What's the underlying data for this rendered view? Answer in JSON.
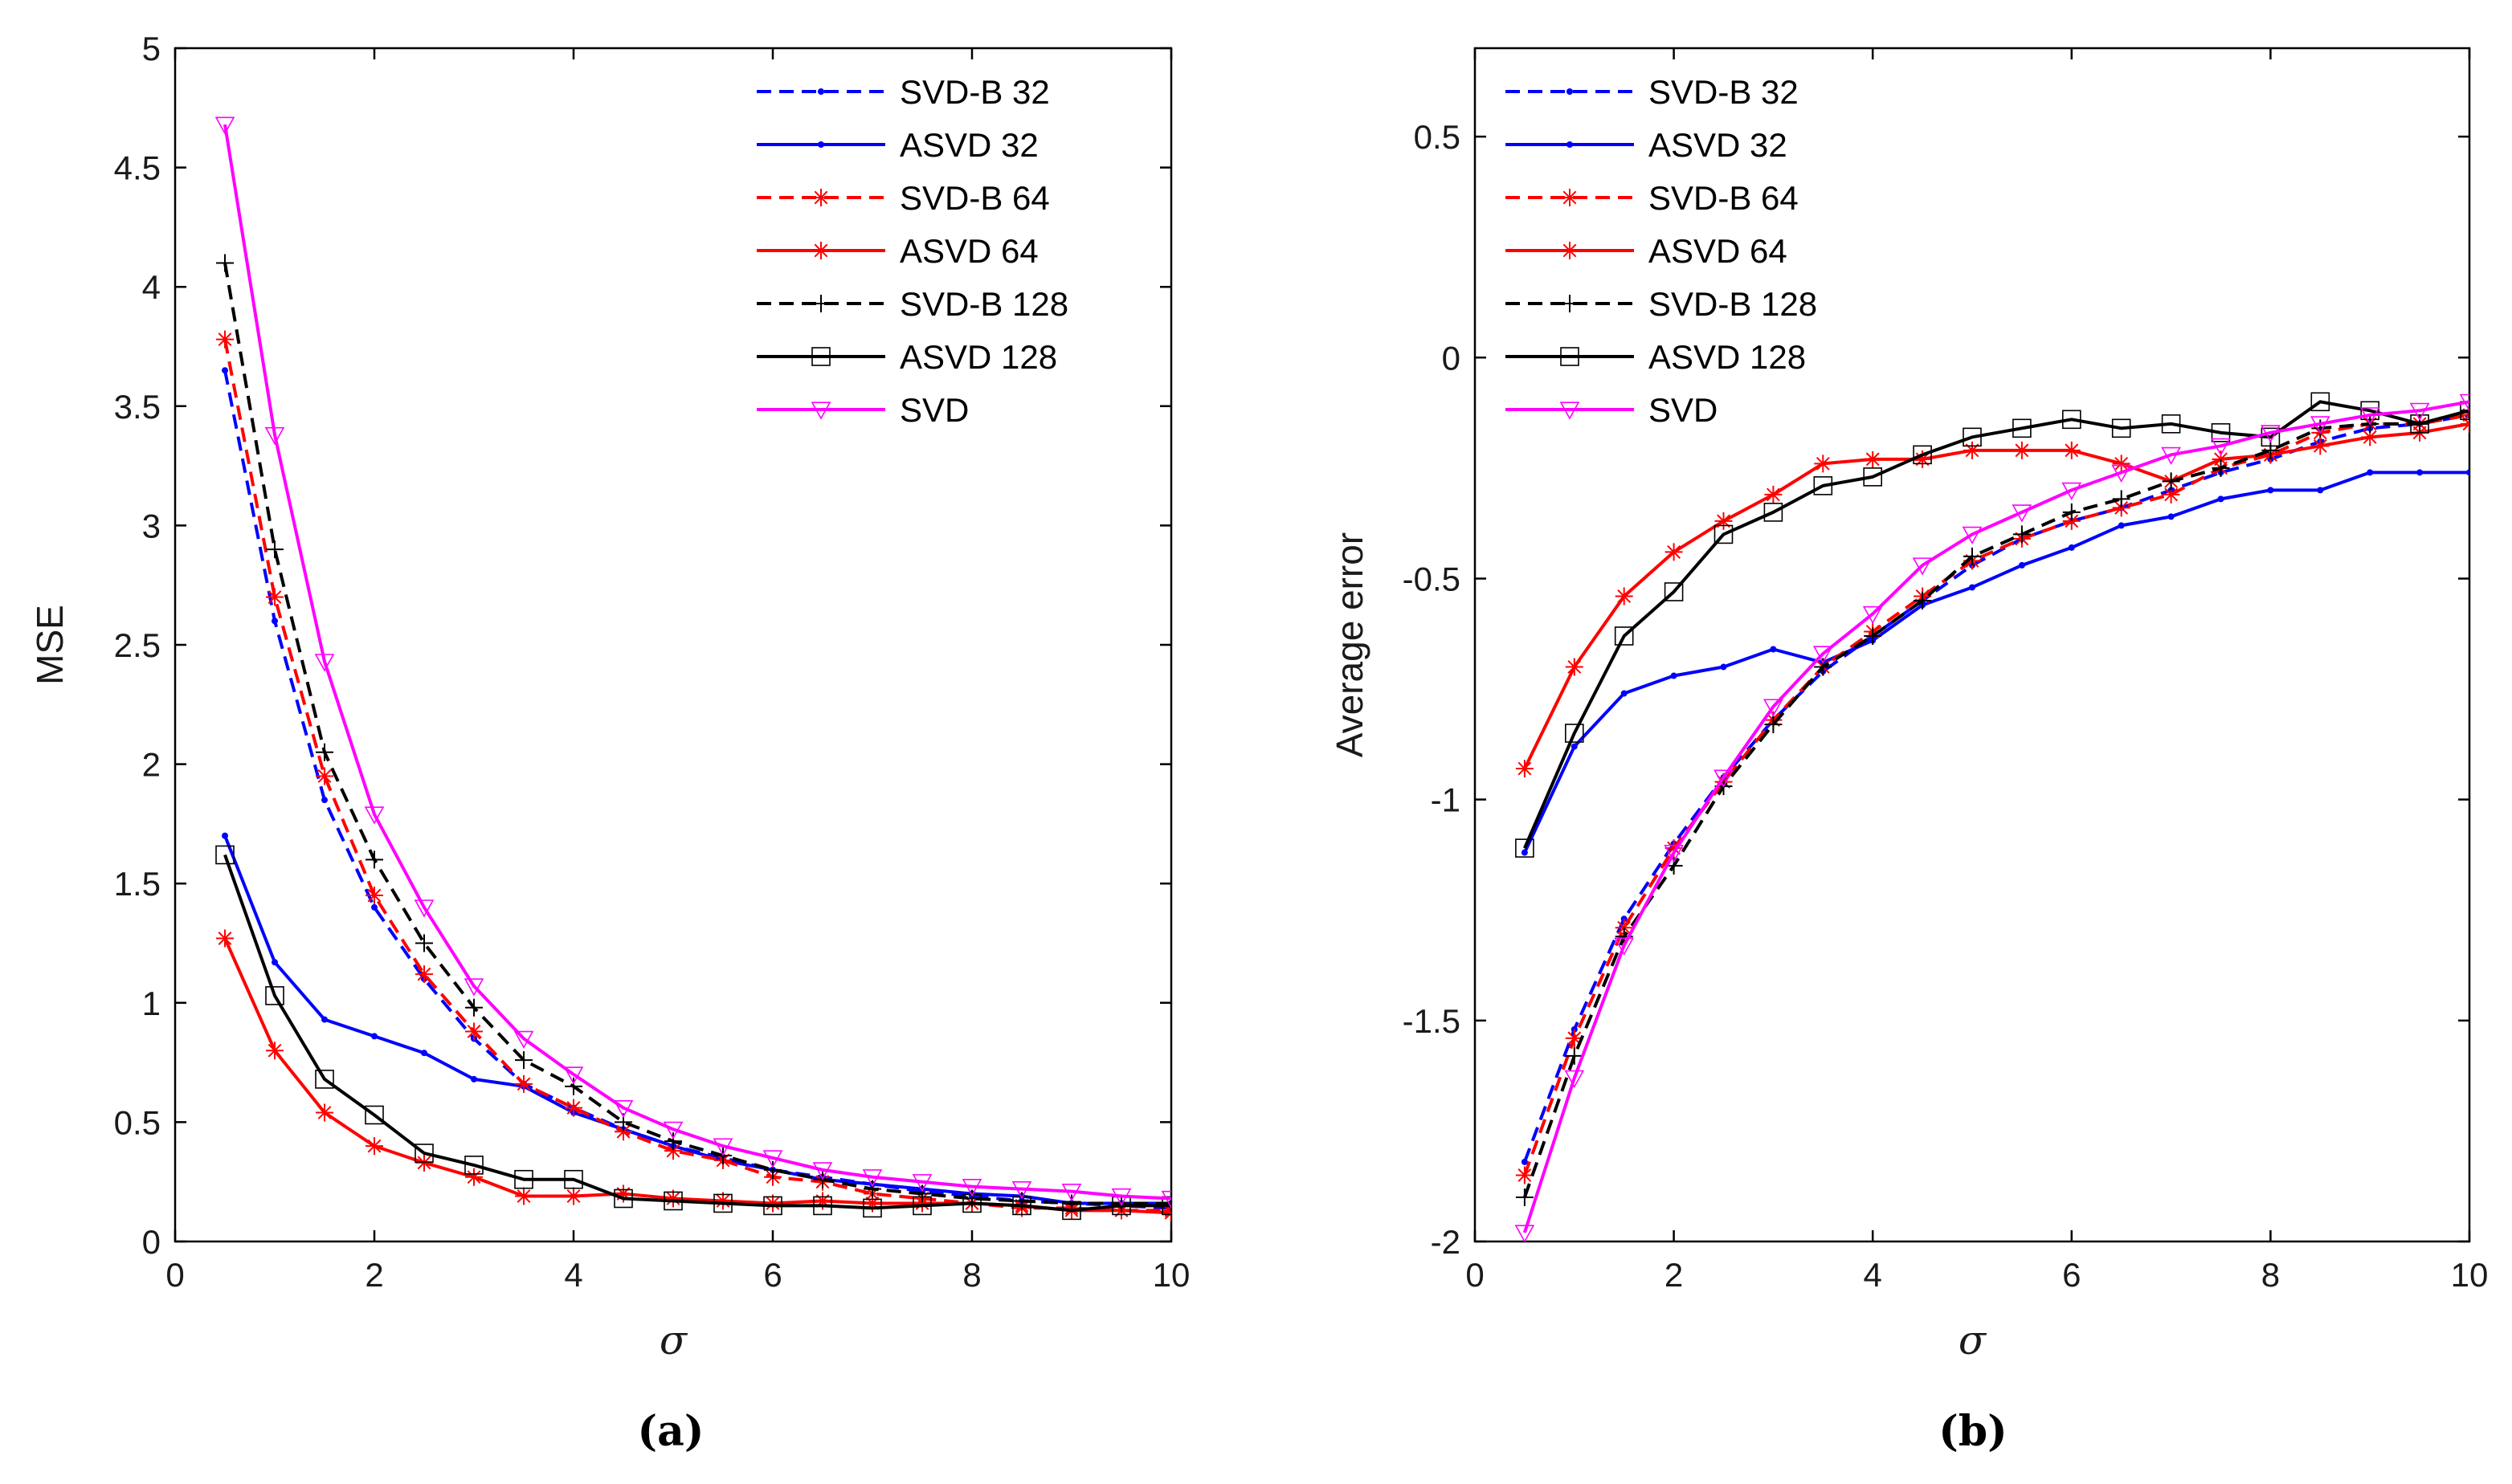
{
  "chart_data": [
    {
      "type": "line",
      "panel": "(a)",
      "xlabel": "σ",
      "ylabel": "MSE",
      "xlim": [
        0,
        10
      ],
      "ylim": [
        0,
        5
      ],
      "xticks": [
        "0",
        "2",
        "4",
        "6",
        "8",
        "10"
      ],
      "yticks": [
        "0",
        "0.5",
        "1",
        "1.5",
        "2",
        "2.5",
        "3",
        "3.5",
        "4",
        "4.5",
        "5"
      ],
      "legend_position": "top-right",
      "x": [
        0.5,
        1,
        1.5,
        2,
        2.5,
        3,
        3.5,
        4,
        4.5,
        5,
        5.5,
        6,
        6.5,
        7,
        7.5,
        8,
        8.5,
        9,
        9.5,
        10
      ],
      "series": [
        {
          "name": "SVD-B 32",
          "color": "#0000ff",
          "dash": "dashed",
          "marker": "dot",
          "values": [
            3.65,
            2.6,
            1.85,
            1.4,
            1.1,
            0.85,
            0.66,
            0.56,
            0.47,
            0.4,
            0.35,
            0.3,
            0.27,
            0.24,
            0.21,
            0.19,
            0.17,
            0.16,
            0.15,
            0.14
          ]
        },
        {
          "name": "ASVD 32",
          "color": "#0000ff",
          "dash": "solid",
          "marker": "dot",
          "values": [
            1.7,
            1.17,
            0.93,
            0.86,
            0.79,
            0.68,
            0.65,
            0.54,
            0.47,
            0.4,
            0.34,
            0.3,
            0.26,
            0.24,
            0.22,
            0.2,
            0.19,
            0.16,
            0.16,
            0.16
          ]
        },
        {
          "name": "SVD-B 64",
          "color": "#ff0000",
          "dash": "dashed",
          "marker": "star",
          "values": [
            3.78,
            2.7,
            1.95,
            1.45,
            1.12,
            0.88,
            0.66,
            0.56,
            0.46,
            0.38,
            0.34,
            0.27,
            0.25,
            0.2,
            0.18,
            0.16,
            0.14,
            0.14,
            0.13,
            0.13
          ]
        },
        {
          "name": "ASVD 64",
          "color": "#ff0000",
          "dash": "solid",
          "marker": "star",
          "values": [
            1.27,
            0.8,
            0.54,
            0.4,
            0.33,
            0.27,
            0.19,
            0.19,
            0.2,
            0.18,
            0.17,
            0.16,
            0.17,
            0.16,
            0.16,
            0.16,
            0.15,
            0.13,
            0.13,
            0.12
          ]
        },
        {
          "name": "SVD-B 128",
          "color": "#000000",
          "dash": "dashed",
          "marker": "plus",
          "values": [
            4.1,
            2.9,
            2.05,
            1.6,
            1.25,
            0.98,
            0.76,
            0.65,
            0.5,
            0.42,
            0.36,
            0.3,
            0.26,
            0.22,
            0.2,
            0.18,
            0.17,
            0.16,
            0.16,
            0.16
          ]
        },
        {
          "name": "ASVD 128",
          "color": "#000000",
          "dash": "solid",
          "marker": "square",
          "values": [
            1.62,
            1.03,
            0.68,
            0.53,
            0.37,
            0.32,
            0.26,
            0.26,
            0.18,
            0.17,
            0.16,
            0.15,
            0.15,
            0.14,
            0.15,
            0.16,
            0.15,
            0.13,
            0.15,
            0.15
          ]
        },
        {
          "name": "SVD",
          "color": "#ff00ff",
          "dash": "solid",
          "marker": "triangle-down",
          "values": [
            4.68,
            3.38,
            2.43,
            1.79,
            1.4,
            1.07,
            0.85,
            0.7,
            0.56,
            0.47,
            0.4,
            0.35,
            0.3,
            0.27,
            0.25,
            0.23,
            0.22,
            0.21,
            0.19,
            0.18
          ]
        }
      ]
    },
    {
      "type": "line",
      "panel": "(b)",
      "xlabel": "σ",
      "ylabel": "Average error",
      "xlim": [
        0,
        10
      ],
      "ylim": [
        -2,
        0.7
      ],
      "xticks": [
        "0",
        "2",
        "4",
        "6",
        "8",
        "10"
      ],
      "yticks": [
        "-2",
        "-1.5",
        "-1",
        "-0.5",
        "0",
        "0.5"
      ],
      "legend_position": "top-left",
      "x": [
        0.5,
        1,
        1.5,
        2,
        2.5,
        3,
        3.5,
        4,
        4.5,
        5,
        5.5,
        6,
        6.5,
        7,
        7.5,
        8,
        8.5,
        9,
        9.5,
        10
      ],
      "series": [
        {
          "name": "SVD-B 32",
          "color": "#0000ff",
          "dash": "dashed",
          "marker": "dot",
          "values": [
            -1.82,
            -1.52,
            -1.27,
            -1.1,
            -0.95,
            -0.82,
            -0.71,
            -0.63,
            -0.55,
            -0.47,
            -0.41,
            -0.37,
            -0.34,
            -0.3,
            -0.26,
            -0.23,
            -0.19,
            -0.16,
            -0.15,
            -0.13
          ]
        },
        {
          "name": "ASVD 32",
          "color": "#0000ff",
          "dash": "solid",
          "marker": "dot",
          "values": [
            -1.12,
            -0.88,
            -0.76,
            -0.72,
            -0.7,
            -0.66,
            -0.69,
            -0.64,
            -0.56,
            -0.52,
            -0.47,
            -0.43,
            -0.38,
            -0.36,
            -0.32,
            -0.3,
            -0.3,
            -0.26,
            -0.26,
            -0.26
          ]
        },
        {
          "name": "SVD-B 64",
          "color": "#ff0000",
          "dash": "dashed",
          "marker": "star",
          "values": [
            -1.85,
            -1.54,
            -1.29,
            -1.11,
            -0.96,
            -0.82,
            -0.7,
            -0.62,
            -0.54,
            -0.46,
            -0.41,
            -0.37,
            -0.34,
            -0.31,
            -0.25,
            -0.22,
            -0.17,
            -0.15,
            -0.15,
            -0.13
          ]
        },
        {
          "name": "ASVD 64",
          "color": "#ff0000",
          "dash": "solid",
          "marker": "star",
          "values": [
            -0.93,
            -0.7,
            -0.54,
            -0.44,
            -0.37,
            -0.31,
            -0.24,
            -0.23,
            -0.23,
            -0.21,
            -0.21,
            -0.21,
            -0.24,
            -0.28,
            -0.23,
            -0.22,
            -0.2,
            -0.18,
            -0.17,
            -0.15
          ]
        },
        {
          "name": "SVD-B 128",
          "color": "#000000",
          "dash": "dashed",
          "marker": "plus",
          "values": [
            -1.9,
            -1.58,
            -1.31,
            -1.15,
            -0.97,
            -0.83,
            -0.7,
            -0.63,
            -0.55,
            -0.45,
            -0.4,
            -0.35,
            -0.32,
            -0.28,
            -0.25,
            -0.21,
            -0.16,
            -0.15,
            -0.15,
            -0.12
          ]
        },
        {
          "name": "ASVD 128",
          "color": "#000000",
          "dash": "solid",
          "marker": "square",
          "values": [
            -1.11,
            -0.85,
            -0.63,
            -0.53,
            -0.4,
            -0.35,
            -0.29,
            -0.27,
            -0.22,
            -0.18,
            -0.16,
            -0.14,
            -0.16,
            -0.15,
            -0.17,
            -0.18,
            -0.1,
            -0.12,
            -0.15,
            -0.12
          ]
        },
        {
          "name": "SVD",
          "color": "#ff00ff",
          "dash": "solid",
          "marker": "triangle-down",
          "values": [
            -1.98,
            -1.63,
            -1.33,
            -1.12,
            -0.95,
            -0.79,
            -0.67,
            -0.58,
            -0.47,
            -0.4,
            -0.35,
            -0.3,
            -0.26,
            -0.22,
            -0.2,
            -0.17,
            -0.15,
            -0.13,
            -0.12,
            -0.1
          ]
        }
      ]
    }
  ],
  "captions": [
    "(a)",
    "(b)"
  ]
}
